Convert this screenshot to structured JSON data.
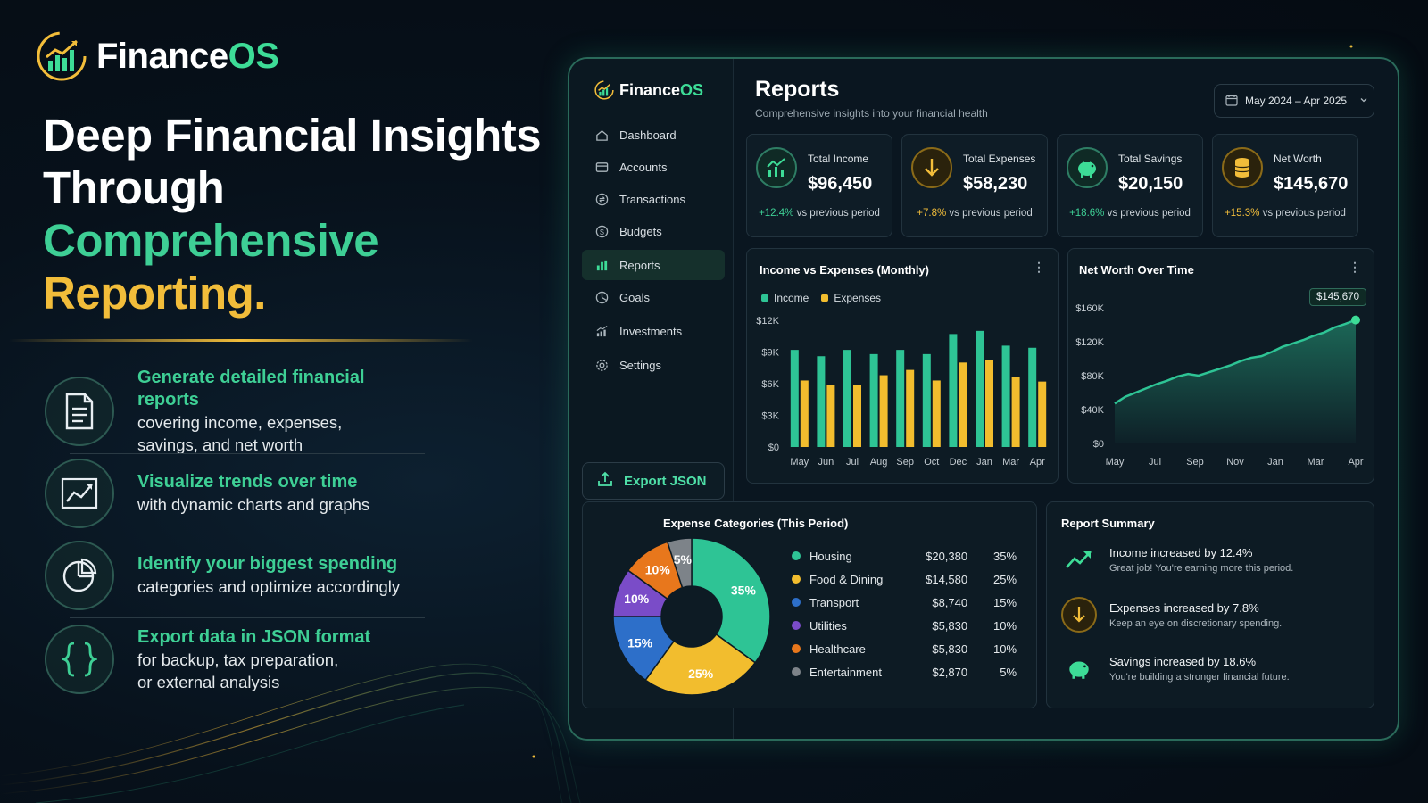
{
  "hero": {
    "brand_a": "Finance",
    "brand_b": "OS",
    "headline_1": "Deep Financial Insights",
    "headline_2": "Through",
    "headline_3": "Comprehensive",
    "headline_4": "Reporting.",
    "features": [
      {
        "icon": "document-icon",
        "title": "Generate detailed financial reports",
        "sub1": "covering income, expenses,",
        "sub2": "savings, and net worth"
      },
      {
        "icon": "trend-chart-icon",
        "title": "Visualize trends over time",
        "sub1": "with dynamic charts and graphs",
        "sub2": ""
      },
      {
        "icon": "pie-chart-icon",
        "title": "Identify your biggest spending",
        "sub1": "categories and optimize accordingly",
        "sub2": ""
      },
      {
        "icon": "braces-icon",
        "title": "Export data in JSON format",
        "sub1": "for backup, tax preparation,",
        "sub2": "or external analysis"
      }
    ]
  },
  "app": {
    "logo_a": "Finance",
    "logo_b": "OS",
    "nav": [
      {
        "label": "Dashboard",
        "icon": "home-icon",
        "active": false
      },
      {
        "label": "Accounts",
        "icon": "wallet-icon",
        "active": false
      },
      {
        "label": "Transactions",
        "icon": "transactions-icon",
        "active": false
      },
      {
        "label": "Budgets",
        "icon": "budget-icon",
        "active": false
      },
      {
        "label": "Reports",
        "icon": "bar-chart-icon",
        "active": true
      },
      {
        "label": "Goals",
        "icon": "goal-icon",
        "active": false
      },
      {
        "label": "Investments",
        "icon": "investments-icon",
        "active": false
      },
      {
        "label": "Settings",
        "icon": "gear-icon",
        "active": false
      }
    ],
    "export_label": "Export JSON",
    "page_title": "Reports",
    "page_subtitle": "Comprehensive insights into your financial health",
    "date_range": "May 2024 – Apr 2025",
    "kpis": [
      {
        "label": "Total Income",
        "value": "$96,450",
        "pct": "+12.4%",
        "suffix": " vs previous period",
        "icon": "growth-icon",
        "tone": "green"
      },
      {
        "label": "Total Expenses",
        "value": "$58,230",
        "pct": "+7.8%",
        "suffix": " vs previous period",
        "icon": "arrow-down-icon",
        "tone": "yellow"
      },
      {
        "label": "Total Savings",
        "value": "$20,150",
        "pct": "+18.6%",
        "suffix": " vs previous period",
        "icon": "piggy-bank-icon",
        "tone": "green"
      },
      {
        "label": "Net Worth",
        "value": "$145,670",
        "pct": "+15.3%",
        "suffix": " vs previous period",
        "icon": "coins-icon",
        "tone": "yellow"
      }
    ],
    "summary_title": "Report Summary",
    "summary": [
      {
        "title": "Income increased by 12.4%",
        "sub": "Great job! You're earning more this period.",
        "icon": "trend-up-icon"
      },
      {
        "title": "Expenses increased by 7.8%",
        "sub": "Keep an eye on discretionary spending.",
        "icon": "arrow-down-icon"
      },
      {
        "title": "Savings increased by 18.6%",
        "sub": "You're building a stronger financial future.",
        "icon": "piggy-bank-icon"
      }
    ]
  },
  "colors": {
    "income": "#2ec495",
    "expenses": "#f2bd2e",
    "accent": "#3ddc97"
  },
  "chart_data": [
    {
      "type": "bar",
      "title": "Income vs Expenses (Monthly)",
      "categories": [
        "May",
        "Jun",
        "Jul",
        "Aug",
        "Sep",
        "Oct",
        "Dec",
        "Jan",
        "Mar",
        "Apr"
      ],
      "series": [
        {
          "name": "Income",
          "values": [
            9200,
            8600,
            9200,
            8800,
            9200,
            8800,
            10700,
            11000,
            9600,
            9400
          ]
        },
        {
          "name": "Expenses",
          "values": [
            6300,
            5900,
            5900,
            6800,
            7300,
            6300,
            8000,
            8200,
            6600,
            6200
          ]
        }
      ],
      "yticks": [
        "$0",
        "$3K",
        "$6K",
        "$9K",
        "$12K"
      ],
      "ylim": [
        0,
        12000
      ]
    },
    {
      "type": "area",
      "title": "Net Worth Over Time",
      "xticks": [
        "May",
        "Jul",
        "Sep",
        "Nov",
        "Jan",
        "Mar",
        "Apr"
      ],
      "yticks": [
        "$0",
        "$40K",
        "$80K",
        "$120K",
        "$160K"
      ],
      "ylim": [
        0,
        160000
      ],
      "values": [
        47000,
        55000,
        60000,
        65000,
        70000,
        74000,
        79000,
        82000,
        80000,
        84000,
        88000,
        92000,
        97000,
        101000,
        103000,
        108000,
        114000,
        118000,
        122000,
        127000,
        131000,
        137000,
        141000,
        145670
      ],
      "end_label": "$145,670"
    },
    {
      "type": "pie",
      "title": "Expense Categories (This Period)",
      "slices": [
        {
          "label": "Housing",
          "amount": "$20,380",
          "pct": "35%",
          "value": 35,
          "color": "#2ec495"
        },
        {
          "label": "Food & Dining",
          "amount": "$14,580",
          "pct": "25%",
          "value": 25,
          "color": "#f2bd2e"
        },
        {
          "label": "Transport",
          "amount": "$8,740",
          "pct": "15%",
          "value": 15,
          "color": "#2d6fc9"
        },
        {
          "label": "Utilities",
          "amount": "$5,830",
          "pct": "10%",
          "value": 10,
          "color": "#7a4cc8"
        },
        {
          "label": "Healthcare",
          "amount": "$5,830",
          "pct": "10%",
          "value": 10,
          "color": "#e8771c"
        },
        {
          "label": "Entertainment",
          "amount": "$2,870",
          "pct": "5%",
          "value": 5,
          "color": "#7d8389"
        }
      ]
    }
  ]
}
